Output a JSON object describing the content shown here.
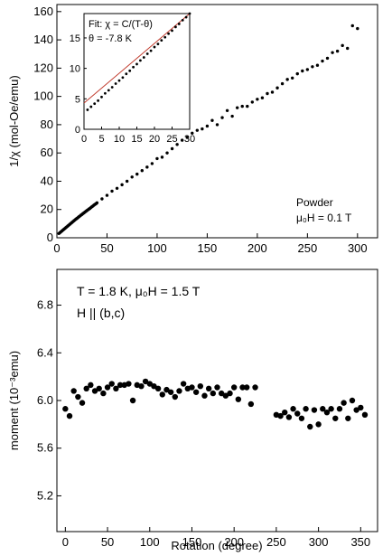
{
  "chart_data": [
    {
      "type": "scatter",
      "xlim": [
        0,
        320
      ],
      "ylim": [
        0,
        165
      ],
      "xticks": [
        0,
        50,
        100,
        150,
        200,
        250,
        300
      ],
      "yticks": [
        0,
        20,
        40,
        60,
        80,
        100,
        120,
        140,
        160
      ],
      "ylabel": "1/χ (mol-Oe/emu)",
      "annotation_lines": [
        "Powder",
        "μ₀H = 0.1 T"
      ],
      "point_color": "#000000",
      "series": [
        {
          "x": [
            2,
            3,
            4,
            5,
            6,
            7,
            8,
            9,
            10,
            11,
            12,
            13,
            14,
            15,
            16,
            17,
            18,
            19,
            20,
            21,
            22,
            23,
            24,
            25,
            26,
            27,
            28,
            29,
            30,
            31,
            32,
            33,
            34,
            35,
            36,
            37,
            38,
            39,
            40,
            45,
            50,
            55,
            60,
            65,
            70,
            75,
            80,
            85,
            90,
            95,
            100,
            105,
            110,
            115,
            120,
            125,
            130,
            135,
            140,
            145,
            150,
            155,
            160,
            165,
            170,
            175,
            180,
            185,
            190,
            195,
            200,
            205,
            210,
            215,
            220,
            225,
            230,
            235,
            240,
            245,
            250,
            255,
            260,
            265,
            270,
            275,
            280,
            285,
            290,
            295,
            300
          ],
          "y": [
            3,
            3.6,
            4.2,
            4.8,
            5.4,
            6,
            6.6,
            7.2,
            7.8,
            8.4,
            9,
            9.6,
            10.2,
            10.8,
            11.4,
            12,
            12.6,
            13.2,
            13.7,
            14.3,
            14.9,
            15.4,
            16,
            16.5,
            17.1,
            17.6,
            18.2,
            18.7,
            19.3,
            19.8,
            20.3,
            20.8,
            21.4,
            22,
            22.5,
            23.1,
            23.6,
            24.1,
            24.7,
            27.5,
            30,
            33,
            35,
            37.5,
            40,
            43,
            45,
            47.5,
            50,
            52.5,
            56,
            57,
            60,
            63,
            66,
            69,
            71,
            74,
            76,
            77,
            79,
            83,
            80,
            85,
            90,
            86,
            92,
            93,
            93,
            96,
            98,
            99,
            102,
            103,
            106,
            109,
            112,
            113,
            116,
            118,
            119,
            121,
            122,
            125,
            127,
            131,
            132,
            136,
            134,
            150,
            148
          ]
        }
      ]
    },
    {
      "type": "scatter",
      "title": "",
      "xlim": [
        0,
        30
      ],
      "ylim": [
        0,
        19
      ],
      "xticks": [
        0,
        5,
        10,
        15,
        20,
        25,
        30
      ],
      "yticks": [
        0,
        5,
        10,
        15
      ],
      "annotation_lines": [
        "Fit: χ = C/(T-θ)",
        "θ = -7.8 K"
      ],
      "fit_line": {
        "x": [
          0,
          30
        ],
        "y": [
          4.3,
          19
        ],
        "color": "#c0392b"
      },
      "point_color": "#000000",
      "series": [
        {
          "x": [
            1,
            2,
            3,
            4,
            5,
            6,
            7,
            8,
            9,
            10,
            11,
            12,
            13,
            14,
            15,
            16,
            17,
            18,
            19,
            20,
            21,
            22,
            23,
            24,
            25,
            26,
            27,
            28,
            29,
            30
          ],
          "y": [
            3.2,
            3.7,
            4.2,
            4.7,
            5.3,
            5.9,
            6.4,
            6.9,
            7.5,
            8.0,
            8.5,
            9.1,
            9.6,
            10.2,
            10.7,
            11.3,
            11.8,
            12.4,
            12.9,
            13.5,
            14.0,
            14.6,
            15.1,
            15.7,
            16.2,
            16.8,
            17.3,
            17.9,
            18.4,
            19.0
          ]
        }
      ]
    },
    {
      "type": "scatter",
      "xlim": [
        -10,
        370
      ],
      "ylim": [
        4.9,
        7.1
      ],
      "xticks": [
        0,
        50,
        100,
        150,
        200,
        250,
        300,
        350
      ],
      "yticks": [
        5.2,
        5.6,
        6.0,
        6.4,
        6.8
      ],
      "ytick_labels": [
        "5.2",
        "5.6",
        "6.0",
        "6.4",
        "6.8"
      ],
      "xlabel": "Rotation (degree)",
      "ylabel": "moment (10⁻³emu)",
      "annotation_lines": [
        "T = 1.8 K, μ₀H = 1.5 T",
        "H || (b,c)"
      ],
      "point_color": "#000000",
      "series": [
        {
          "x": [
            0,
            5,
            10,
            15,
            20,
            25,
            30,
            35,
            40,
            45,
            50,
            55,
            60,
            65,
            70,
            75,
            80,
            85,
            90,
            95,
            100,
            105,
            110,
            115,
            120,
            125,
            130,
            135,
            140,
            145,
            150,
            155,
            160,
            165,
            170,
            175,
            180,
            185,
            190,
            195,
            200,
            205,
            210,
            215,
            220,
            225,
            250,
            255,
            260,
            265,
            270,
            275,
            280,
            285,
            290,
            295,
            300,
            305,
            310,
            315,
            320,
            325,
            330,
            335,
            340,
            345,
            350,
            355
          ],
          "y": [
            5.93,
            5.87,
            6.08,
            6.03,
            5.98,
            6.1,
            6.13,
            6.08,
            6.1,
            6.06,
            6.11,
            6.14,
            6.1,
            6.13,
            6.13,
            6.14,
            6.0,
            6.13,
            6.12,
            6.16,
            6.14,
            6.12,
            6.1,
            6.05,
            6.09,
            6.07,
            6.03,
            6.08,
            6.14,
            6.1,
            6.11,
            6.07,
            6.12,
            6.04,
            6.1,
            6.06,
            6.11,
            6.06,
            6.04,
            6.06,
            6.11,
            6.01,
            6.11,
            6.11,
            5.97,
            6.11,
            5.88,
            5.87,
            5.9,
            5.86,
            5.93,
            5.89,
            5.85,
            5.93,
            5.78,
            5.92,
            5.8,
            5.93,
            5.9,
            5.93,
            5.85,
            5.93,
            5.98,
            5.85,
            6.0,
            5.92,
            5.94,
            5.88
          ]
        }
      ]
    }
  ]
}
